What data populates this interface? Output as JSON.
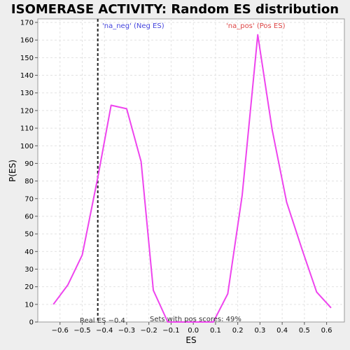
{
  "chart_data": {
    "type": "line",
    "title": "ISOMERASE ACTIVITY: Random ES distribution",
    "xlabel": "ES",
    "ylabel": "P(ES)",
    "xlim": [
      -0.7,
      0.68
    ],
    "ylim": [
      0,
      172
    ],
    "xticks": [
      -0.6,
      -0.5,
      -0.4,
      -0.3,
      -0.2,
      -0.1,
      0.0,
      0.1,
      0.2,
      0.3,
      0.4,
      0.5,
      0.6
    ],
    "xtick_labels": [
      "−0.6",
      "−0.5",
      "−0.4",
      "−0.3",
      "−0.2",
      "−0.1",
      "0.0",
      "0.1",
      "0.2",
      "0.3",
      "0.4",
      "0.5",
      "0.6"
    ],
    "yticks": [
      0,
      10,
      20,
      30,
      40,
      50,
      60,
      70,
      80,
      90,
      100,
      110,
      120,
      130,
      140,
      150,
      160,
      170
    ],
    "grid": true,
    "series": [
      {
        "color": "#ee44ee",
        "x": [
          -0.63,
          -0.565,
          -0.5,
          -0.43,
          -0.37,
          -0.3,
          -0.235,
          -0.18,
          -0.115,
          -0.05,
          0.02,
          0.09,
          0.155,
          0.22,
          0.29,
          0.355,
          0.42,
          0.49,
          0.555,
          0.62
        ],
        "y": [
          10,
          21,
          38,
          82,
          123,
          121,
          91,
          18,
          0,
          0,
          0,
          0,
          16,
          72,
          163,
          109,
          68,
          41,
          17,
          8
        ]
      }
    ],
    "annotations": {
      "real_es": {
        "x": -0.43,
        "label": "Real ES −0.4",
        "color": "#333333"
      },
      "neg_label": {
        "text": "'na_neg' (Neg ES)",
        "color": "#4444dd"
      },
      "pos_label": {
        "text": "'na_pos' (Pos ES)",
        "color": "#dd4444"
      },
      "pos_scores": {
        "text": "Sets with pos scores: 49%",
        "color": "#333333"
      }
    }
  }
}
